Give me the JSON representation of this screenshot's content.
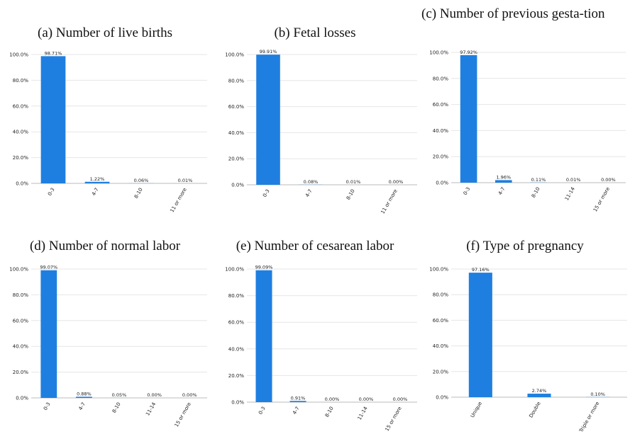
{
  "colors": {
    "bar": "#1f7fe0",
    "grid": "#e6e6e6",
    "axis": "#bbbbbb",
    "text": "#222222"
  },
  "chart_data": [
    {
      "type": "bar",
      "title": "(a) Number of live births",
      "categories": [
        "0-3",
        "4-7",
        "8-10",
        "11 or more"
      ],
      "values": [
        98.71,
        1.22,
        0.06,
        0.01
      ],
      "value_labels": [
        "98.71%",
        "1.22%",
        "0.06%",
        "0.01%"
      ],
      "ylim": [
        0,
        100
      ],
      "yticks": [
        "0.0%",
        "20.0%",
        "40.0%",
        "60.0%",
        "80.0%",
        "100.0%"
      ],
      "grid": true,
      "xlabel": "",
      "ylabel": ""
    },
    {
      "type": "bar",
      "title": "(b) Fetal losses",
      "categories": [
        "0-3",
        "4-7",
        "8-10",
        "11 or more"
      ],
      "values": [
        99.91,
        0.08,
        0.01,
        0.0
      ],
      "value_labels": [
        "99.91%",
        "0.08%",
        "0.01%",
        "0.00%"
      ],
      "ylim": [
        0,
        100
      ],
      "yticks": [
        "0.0%",
        "20.0%",
        "40.0%",
        "60.0%",
        "80.0%",
        "100.0%"
      ],
      "grid": true,
      "xlabel": "",
      "ylabel": ""
    },
    {
      "type": "bar",
      "title": "(c) Number of previous gestation",
      "title_display": "(c) Number of previous gesta-tion",
      "categories": [
        "0-3",
        "4-7",
        "8-10",
        "11-14",
        "15 or more"
      ],
      "values": [
        97.92,
        1.96,
        0.11,
        0.01,
        0.0
      ],
      "value_labels": [
        "97.92%",
        "1.96%",
        "0.11%",
        "0.01%",
        "0.00%"
      ],
      "ylim": [
        0,
        100
      ],
      "yticks": [
        "0.0%",
        "20.0%",
        "40.0%",
        "60.0%",
        "80.0%",
        "100.0%"
      ],
      "grid": true,
      "xlabel": "",
      "ylabel": ""
    },
    {
      "type": "bar",
      "title": "(d) Number of normal labor",
      "categories": [
        "0-3",
        "4-7",
        "8-10",
        "11-14",
        "15 or more"
      ],
      "values": [
        99.07,
        0.88,
        0.05,
        0.0,
        0.0
      ],
      "value_labels": [
        "99.07%",
        "0.88%",
        "0.05%",
        "0.00%",
        "0.00%"
      ],
      "ylim": [
        0,
        100
      ],
      "yticks": [
        "0.0%",
        "20.0%",
        "40.0%",
        "60.0%",
        "80.0%",
        "100.0%"
      ],
      "grid": true,
      "xlabel": "",
      "ylabel": ""
    },
    {
      "type": "bar",
      "title": "(e) Number of cesarean labor",
      "categories": [
        "0-3",
        "4-7",
        "8-10",
        "11-14",
        "15 or more"
      ],
      "values": [
        99.09,
        0.91,
        0.0,
        0.0,
        0.0
      ],
      "value_labels": [
        "99.09%",
        "0.91%",
        "0.00%",
        "0.00%",
        "0.00%"
      ],
      "ylim": [
        0,
        100
      ],
      "yticks": [
        "0.0%",
        "20.0%",
        "40.0%",
        "60.0%",
        "80.0%",
        "100.0%"
      ],
      "grid": true,
      "xlabel": "",
      "ylabel": ""
    },
    {
      "type": "bar",
      "title": "(f) Type of pregnancy",
      "categories": [
        "Unique",
        "Double",
        "Triple or more"
      ],
      "values": [
        97.16,
        2.74,
        0.1
      ],
      "value_labels": [
        "97.16%",
        "2.74%",
        "0.10%"
      ],
      "ylim": [
        0,
        100
      ],
      "yticks": [
        "0.0%",
        "20.0%",
        "40.0%",
        "60.0%",
        "80.0%",
        "100.0%"
      ],
      "grid": true,
      "xlabel": "",
      "ylabel": ""
    }
  ]
}
